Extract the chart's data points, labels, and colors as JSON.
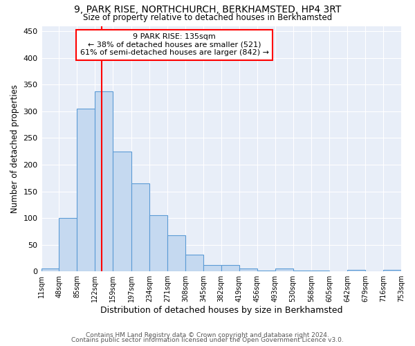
{
  "title1": "9, PARK RISE, NORTHCHURCH, BERKHAMSTED, HP4 3RT",
  "title2": "Size of property relative to detached houses in Berkhamsted",
  "xlabel": "Distribution of detached houses by size in Berkhamsted",
  "ylabel": "Number of detached properties",
  "bin_edges": [
    11,
    48,
    85,
    122,
    159,
    197,
    234,
    271,
    308,
    345,
    382,
    419,
    456,
    493,
    530,
    568,
    605,
    642,
    679,
    716,
    753
  ],
  "bin_labels": [
    "11sqm",
    "48sqm",
    "85sqm",
    "122sqm",
    "159sqm",
    "197sqm",
    "234sqm",
    "271sqm",
    "308sqm",
    "345sqm",
    "382sqm",
    "419sqm",
    "456sqm",
    "493sqm",
    "530sqm",
    "568sqm",
    "605sqm",
    "642sqm",
    "679sqm",
    "716sqm",
    "753sqm"
  ],
  "bar_heights": [
    5,
    100,
    305,
    338,
    225,
    165,
    105,
    68,
    32,
    12,
    12,
    6,
    2,
    5,
    2,
    1,
    0,
    3,
    0,
    3
  ],
  "bar_color": "#c5d9f0",
  "bar_edgecolor": "#5b9bd5",
  "vline_x": 135,
  "vline_color": "red",
  "annotation_line1": "9 PARK RISE: 135sqm",
  "annotation_line2": "← 38% of detached houses are smaller (521)",
  "annotation_line3": "61% of semi-detached houses are larger (842) →",
  "ylim": [
    0,
    460
  ],
  "yticks": [
    0,
    50,
    100,
    150,
    200,
    250,
    300,
    350,
    400,
    450
  ],
  "background_color": "#e8eef8",
  "grid_color": "#ffffff",
  "footer1": "Contains HM Land Registry data © Crown copyright and database right 2024.",
  "footer2": "Contains public sector information licensed under the Open Government Licence v3.0."
}
